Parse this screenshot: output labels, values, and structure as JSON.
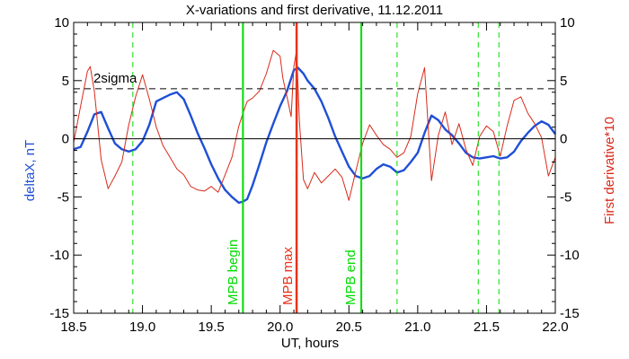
{
  "chart_data": {
    "type": "line",
    "title": "X-variations and first derivative, 11.12.2011",
    "xlabel": "UT, hours",
    "ylabel_left": "deltaX, nT",
    "ylabel_right": "First derivative*10",
    "xlim": [
      18.5,
      22.0
    ],
    "ylim_left": [
      -15,
      10
    ],
    "ylim_right": [
      -15,
      10
    ],
    "x_ticks": [
      18.5,
      19.0,
      19.5,
      20.0,
      20.5,
      21.0,
      21.5,
      22.0
    ],
    "x_tick_labels": [
      "18.5",
      "19.0",
      "19.5",
      "20.0",
      "20.5",
      "21.0",
      "21.5",
      "22.0"
    ],
    "y_ticks": [
      -15,
      -10,
      -5,
      0,
      5,
      10
    ],
    "y_tick_labels": [
      "-15",
      "-10",
      "-5",
      "0",
      "5",
      "10"
    ],
    "threshold": {
      "label": "2sigma",
      "value": 4.3
    },
    "zero_line": 0,
    "colors": {
      "deltaX": "#1f4fd6",
      "derivative": "#d82a1a",
      "mpb_edge": "#00dd00",
      "mpb_max": "#e8321a",
      "axis": "#000000"
    },
    "vlines": {
      "dashed_green_x": [
        18.93,
        20.85,
        21.44,
        21.59
      ],
      "mpb_begin": {
        "x": 19.73,
        "label": "MPB begin"
      },
      "mpb_max": {
        "x": 20.12,
        "label": "MPB max"
      },
      "mpb_end": {
        "x": 20.59,
        "label": "MPB end"
      }
    },
    "series": [
      {
        "name": "deltaX, nT",
        "axis": "left",
        "x": [
          18.5,
          18.55,
          18.6,
          18.65,
          18.7,
          18.75,
          18.8,
          18.85,
          18.9,
          18.95,
          19.0,
          19.05,
          19.1,
          19.15,
          19.2,
          19.25,
          19.3,
          19.35,
          19.4,
          19.45,
          19.5,
          19.55,
          19.6,
          19.65,
          19.7,
          19.73,
          19.76,
          19.8,
          19.85,
          19.9,
          19.95,
          20.0,
          20.05,
          20.1,
          20.13,
          20.17,
          20.2,
          20.25,
          20.3,
          20.35,
          20.4,
          20.45,
          20.5,
          20.55,
          20.6,
          20.65,
          20.7,
          20.75,
          20.8,
          20.85,
          20.9,
          20.95,
          21.0,
          21.05,
          21.1,
          21.15,
          21.2,
          21.25,
          21.3,
          21.35,
          21.4,
          21.45,
          21.5,
          21.55,
          21.6,
          21.65,
          21.7,
          21.75,
          21.8,
          21.85,
          21.9,
          21.95,
          22.0
        ],
        "values": [
          -0.9,
          -0.7,
          0.6,
          2.1,
          2.3,
          0.9,
          -0.4,
          -0.9,
          -1.1,
          -0.9,
          -0.2,
          1.2,
          3.2,
          3.5,
          3.8,
          4.0,
          3.4,
          2.0,
          0.5,
          -0.8,
          -2.2,
          -3.4,
          -4.4,
          -5.0,
          -5.5,
          -5.4,
          -5.2,
          -4.0,
          -2.2,
          -0.3,
          1.3,
          2.8,
          4.1,
          5.9,
          6.1,
          5.6,
          5.0,
          4.3,
          3.2,
          1.8,
          0.2,
          -1.1,
          -2.4,
          -3.2,
          -3.4,
          -3.2,
          -2.6,
          -2.2,
          -2.4,
          -2.9,
          -2.7,
          -2.0,
          -1.2,
          0.5,
          2.0,
          1.6,
          0.8,
          0.3,
          -0.4,
          -1.2,
          -1.6,
          -1.7,
          -1.6,
          -1.5,
          -1.7,
          -1.6,
          -1.1,
          -0.2,
          0.5,
          1.1,
          1.5,
          1.2,
          0.4
        ]
      },
      {
        "name": "First derivative*10",
        "axis": "right",
        "x": [
          18.5,
          18.55,
          18.6,
          18.62,
          18.65,
          18.7,
          18.75,
          18.8,
          18.85,
          18.9,
          18.95,
          19.0,
          19.05,
          19.1,
          19.15,
          19.2,
          19.25,
          19.3,
          19.35,
          19.4,
          19.45,
          19.5,
          19.55,
          19.6,
          19.65,
          19.7,
          19.73,
          19.76,
          19.8,
          19.85,
          19.9,
          19.95,
          20.0,
          20.02,
          20.05,
          20.08,
          20.1,
          20.12,
          20.14,
          20.17,
          20.2,
          20.25,
          20.3,
          20.35,
          20.4,
          20.45,
          20.5,
          20.55,
          20.6,
          20.65,
          20.7,
          20.75,
          20.8,
          20.85,
          20.9,
          20.95,
          21.0,
          21.05,
          21.1,
          21.15,
          21.2,
          21.25,
          21.3,
          21.35,
          21.4,
          21.45,
          21.5,
          21.55,
          21.6,
          21.65,
          21.7,
          21.75,
          21.8,
          21.85,
          21.9,
          21.95,
          22.0
        ],
        "values": [
          -0.3,
          2.8,
          5.8,
          6.2,
          4.1,
          -1.8,
          -4.3,
          -3.2,
          -2.0,
          1.2,
          3.6,
          5.5,
          3.4,
          1.0,
          -0.6,
          -1.6,
          -2.6,
          -3.1,
          -4.1,
          -4.4,
          -4.5,
          -4.1,
          -4.6,
          -3.1,
          -1.6,
          1.1,
          2.2,
          3.2,
          3.5,
          4.1,
          5.6,
          7.6,
          7.1,
          5.2,
          3.6,
          1.9,
          6.2,
          7.6,
          1.5,
          -3.5,
          -4.3,
          -2.9,
          -3.8,
          -3.2,
          -2.6,
          -3.3,
          -5.3,
          -2.8,
          -0.4,
          1.2,
          0.3,
          -0.5,
          -0.9,
          -1.6,
          -1.2,
          0.2,
          3.9,
          6.1,
          -3.6,
          0.3,
          2.3,
          -0.5,
          1.3,
          -0.9,
          -2.3,
          0.2,
          1.1,
          0.6,
          -1.5,
          1.1,
          3.3,
          3.6,
          2.2,
          1.3,
          0.1,
          -3.2,
          -1.6
        ]
      }
    ]
  }
}
